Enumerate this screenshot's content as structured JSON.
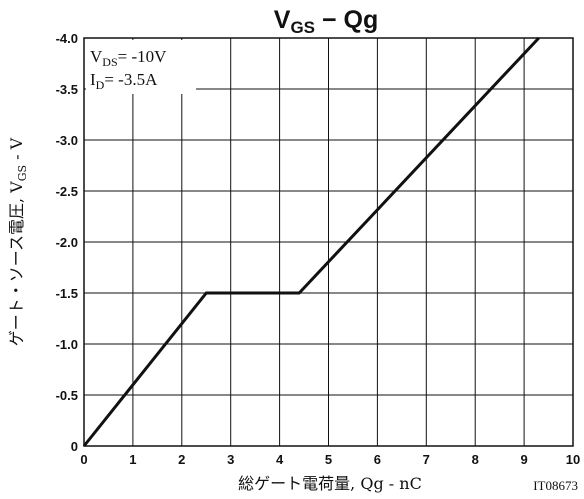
{
  "chart_data": {
    "type": "line",
    "title": {
      "main": "V",
      "sub": "GS",
      "rest": " − Qg"
    },
    "xlabel": "総ゲート電荷量, Qg - nC",
    "ylabel": {
      "pre": "ゲート・ソース電圧, V",
      "sub": "GS",
      "post": " - V"
    },
    "xlim": [
      0,
      10
    ],
    "ylim": [
      0,
      -4.0
    ],
    "x_ticks": [
      "0",
      "1",
      "2",
      "3",
      "4",
      "5",
      "6",
      "7",
      "8",
      "9",
      "10"
    ],
    "y_ticks": [
      "0",
      "-0.5",
      "-1.0",
      "-1.5",
      "-2.0",
      "-2.5",
      "-3.0",
      "-3.5",
      "-4.0"
    ],
    "grid": true,
    "conditions": [
      {
        "main": "V",
        "sub": "DS",
        "rest": "= -10V"
      },
      {
        "main": "I",
        "sub": "D",
        "rest": "= -3.5A"
      }
    ],
    "series": [
      {
        "x": [
          0,
          2.5,
          4.4,
          9.3
        ],
        "y": [
          0,
          -1.5,
          -1.5,
          -4.0
        ]
      }
    ],
    "code": "IT08673"
  }
}
